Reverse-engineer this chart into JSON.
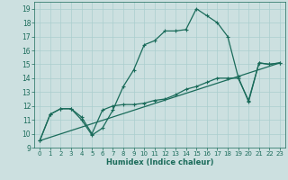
{
  "title": "",
  "xlabel": "Humidex (Indice chaleur)",
  "xlim": [
    -0.5,
    23.5
  ],
  "ylim": [
    9,
    19.5
  ],
  "xticks": [
    0,
    1,
    2,
    3,
    4,
    5,
    6,
    7,
    8,
    9,
    10,
    11,
    12,
    13,
    14,
    15,
    16,
    17,
    18,
    19,
    20,
    21,
    22,
    23
  ],
  "yticks": [
    9,
    10,
    11,
    12,
    13,
    14,
    15,
    16,
    17,
    18,
    19
  ],
  "bg_color": "#cce0e0",
  "line_color": "#1a6b5a",
  "grid_color": "#aacece",
  "lines": [
    {
      "x": [
        0,
        1,
        2,
        3,
        4,
        5,
        6,
        7,
        8,
        9,
        10,
        11,
        12,
        13,
        14,
        15,
        16,
        17,
        18,
        19,
        20,
        21,
        22,
        23
      ],
      "y": [
        9.5,
        11.4,
        11.8,
        11.8,
        11.0,
        9.9,
        10.4,
        11.7,
        13.4,
        14.6,
        16.4,
        16.7,
        17.4,
        17.4,
        17.5,
        19.0,
        18.5,
        18.0,
        17.0,
        14.1,
        12.3,
        15.1,
        15.0,
        15.1
      ]
    },
    {
      "x": [
        0,
        1,
        2,
        3,
        4,
        5,
        6,
        7,
        8,
        9,
        10,
        11,
        12,
        13,
        14,
        15,
        16,
        17,
        18,
        19,
        20,
        21,
        22,
        23
      ],
      "y": [
        9.5,
        11.4,
        11.8,
        11.8,
        11.2,
        10.0,
        11.7,
        12.0,
        12.1,
        12.1,
        12.2,
        12.4,
        12.5,
        12.8,
        13.2,
        13.4,
        13.7,
        14.0,
        14.0,
        14.0,
        12.4,
        15.1,
        15.0,
        15.1
      ]
    },
    {
      "x": [
        0,
        23
      ],
      "y": [
        9.5,
        15.1
      ]
    }
  ]
}
